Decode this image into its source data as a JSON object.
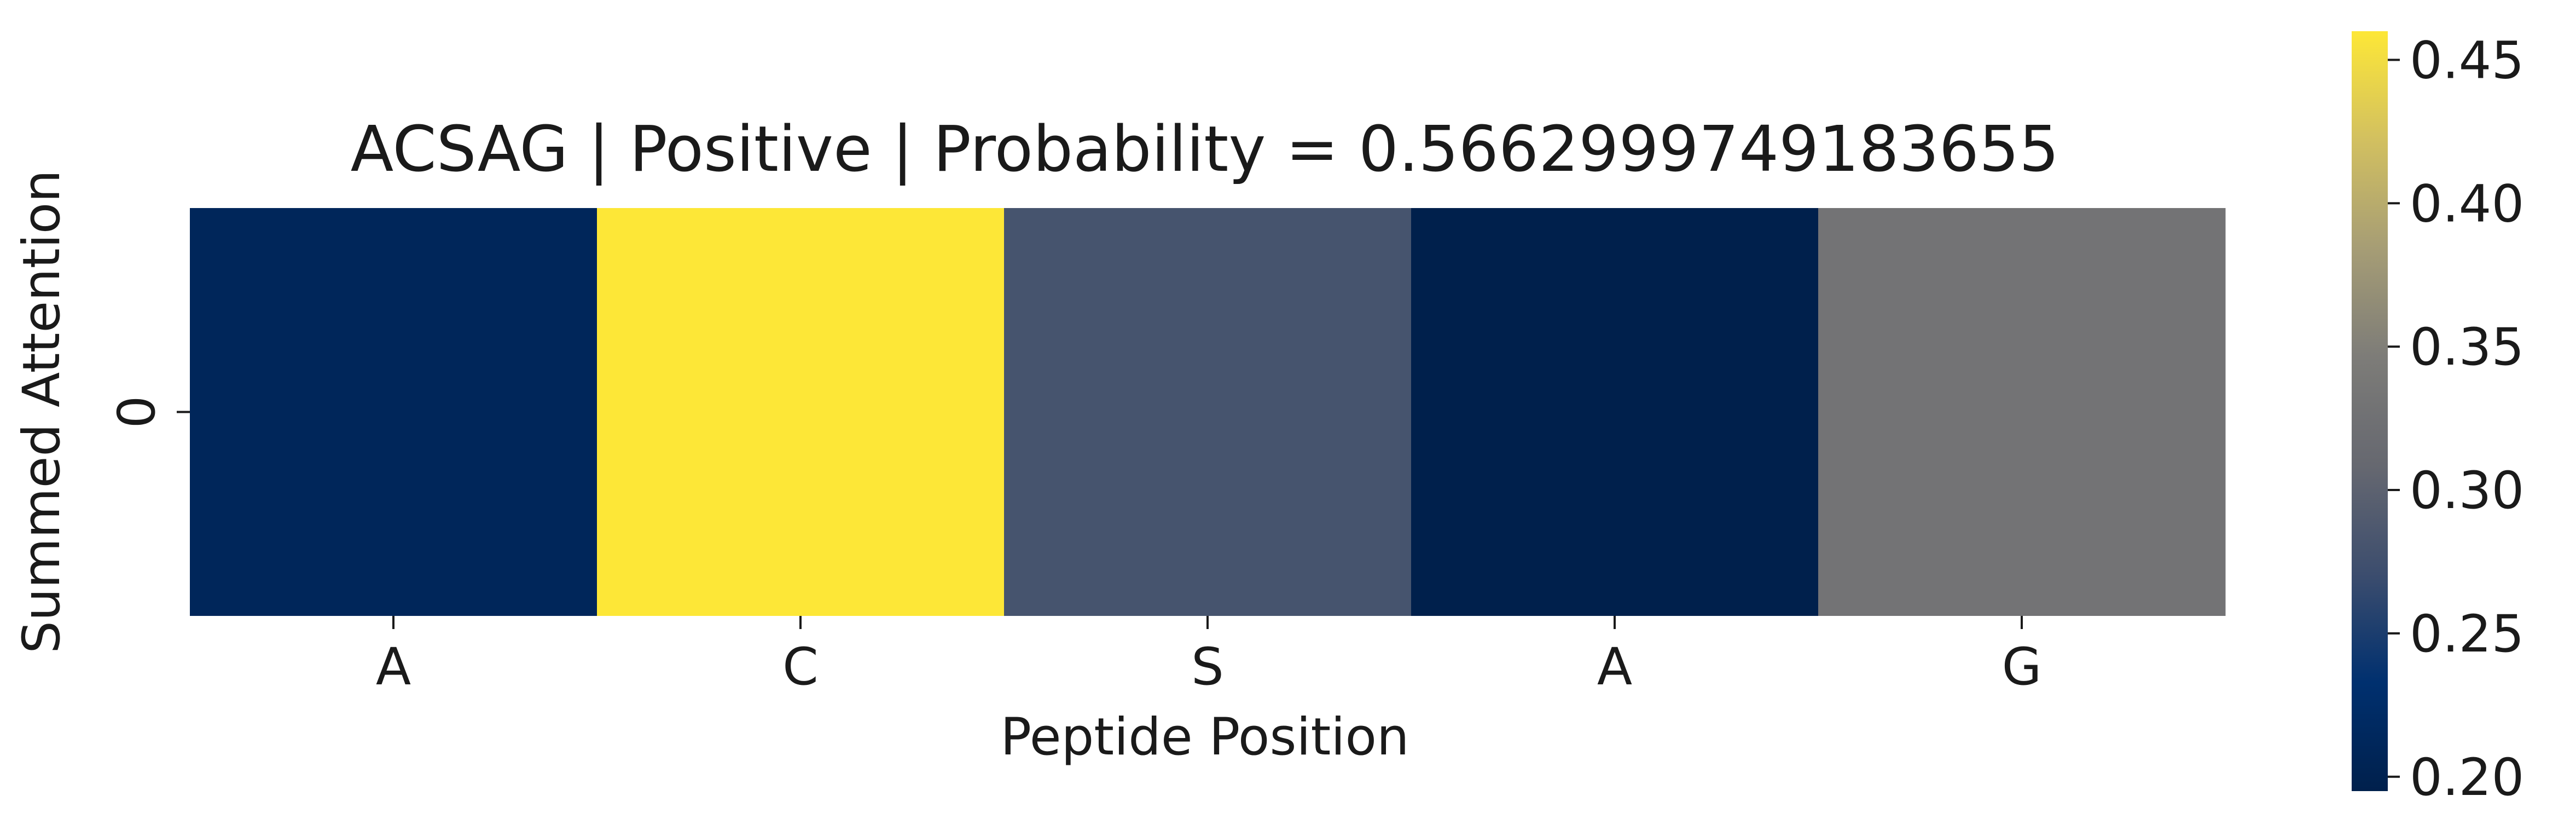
{
  "chart_data": {
    "type": "heatmap",
    "title": "ACSAG | Positive | Probability = 0.5662999749183655",
    "xlabel": "Peptide Position",
    "ylabel": "Summed Attention",
    "x_categories": [
      "A",
      "C",
      "S",
      "A",
      "G"
    ],
    "y_categories": [
      "0"
    ],
    "values": [
      [
        0.21,
        0.46,
        0.28,
        0.195,
        0.33
      ]
    ],
    "colormap": "cividis",
    "colorbar": {
      "range": [
        0.195,
        0.46
      ],
      "ticks": [
        0.2,
        0.25,
        0.3,
        0.35,
        0.4,
        0.45
      ],
      "tick_labels": [
        "0.20",
        "0.25",
        "0.30",
        "0.35",
        "0.40",
        "0.45"
      ],
      "stops": [
        "#00204c",
        "#00306f",
        "#3c4d6e",
        "#666870",
        "#7d7c78",
        "#a69d75",
        "#d2c060",
        "#fde737"
      ]
    },
    "grid": false,
    "legend": "colorbar-right"
  }
}
